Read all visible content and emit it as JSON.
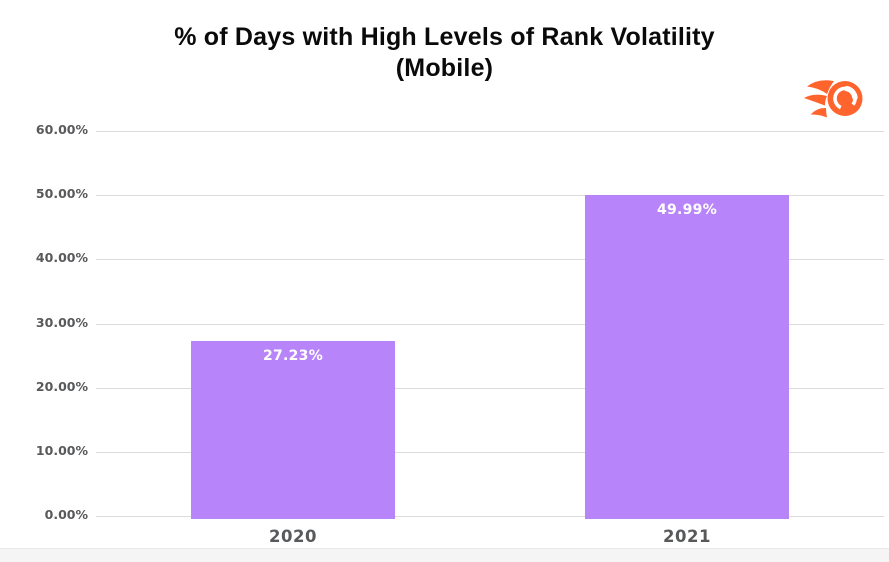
{
  "page": {
    "background_color": "#ffffff",
    "bottom_strip_color": "#f5f5f6"
  },
  "header": {
    "title_line1": "% of Days with High Levels of Rank Volatility",
    "title_line2": "(Mobile)",
    "logo_name": "semrush-logo",
    "logo_color": "#FF642D"
  },
  "chart_data": {
    "type": "bar",
    "title": "% of Days with High Levels of Rank Volatility (Mobile)",
    "categories": [
      "2020",
      "2021"
    ],
    "values": [
      27.23,
      49.99
    ],
    "data_labels": [
      "27.23%",
      "49.99%"
    ],
    "xlabel": "",
    "ylabel": "",
    "ylim": [
      0,
      60
    ],
    "ytick_values": [
      0,
      10,
      20,
      30,
      40,
      50,
      60
    ],
    "ytick_labels": [
      "0.00%",
      "10.00%",
      "20.00%",
      "30.00%",
      "40.00%",
      "50.00%",
      "60.00%"
    ],
    "grid": true,
    "legend": false,
    "bar_color": "#b884fa",
    "value_label_color": "#ffffff",
    "axis_text_color": "#58595b",
    "gridline_color": "#dcdcdc"
  }
}
